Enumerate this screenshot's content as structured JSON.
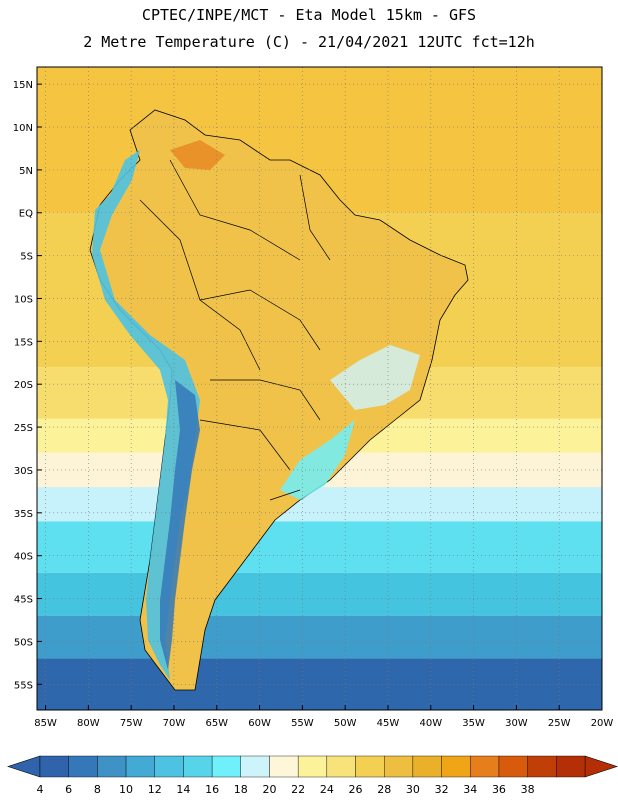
{
  "header": {
    "title_line1": "CPTEC/INPE/MCT -  Eta Model 15km - GFS",
    "title_line2": "2 Metre Temperature (C) - 21/04/2021 12UTC fct=12h"
  },
  "map": {
    "lon_range": [
      -86,
      -20
    ],
    "lat_range": [
      -58,
      17
    ],
    "lat_ticks": [
      {
        "value": 15,
        "label": "15N"
      },
      {
        "value": 10,
        "label": "10N"
      },
      {
        "value": 5,
        "label": "5N"
      },
      {
        "value": 0,
        "label": "EQ"
      },
      {
        "value": -5,
        "label": "5S"
      },
      {
        "value": -10,
        "label": "10S"
      },
      {
        "value": -15,
        "label": "15S"
      },
      {
        "value": -20,
        "label": "20S"
      },
      {
        "value": -25,
        "label": "25S"
      },
      {
        "value": -30,
        "label": "30S"
      },
      {
        "value": -35,
        "label": "35S"
      },
      {
        "value": -40,
        "label": "40S"
      },
      {
        "value": -45,
        "label": "45S"
      },
      {
        "value": -50,
        "label": "50S"
      },
      {
        "value": -55,
        "label": "55S"
      }
    ],
    "lon_ticks": [
      {
        "value": -85,
        "label": "85W"
      },
      {
        "value": -80,
        "label": "80W"
      },
      {
        "value": -75,
        "label": "75W"
      },
      {
        "value": -70,
        "label": "70W"
      },
      {
        "value": -65,
        "label": "65W"
      },
      {
        "value": -60,
        "label": "60W"
      },
      {
        "value": -55,
        "label": "55W"
      },
      {
        "value": -50,
        "label": "50W"
      },
      {
        "value": -45,
        "label": "45W"
      },
      {
        "value": -40,
        "label": "40W"
      },
      {
        "value": -35,
        "label": "35W"
      },
      {
        "value": -30,
        "label": "30W"
      },
      {
        "value": -25,
        "label": "25W"
      },
      {
        "value": -20,
        "label": "20W"
      }
    ],
    "gridlines": "dotted, every 5 degrees",
    "field_bands": [
      {
        "lat_from": 17,
        "lat_to": 0,
        "color": "#f5c542"
      },
      {
        "lat_from": 0,
        "lat_to": -18,
        "color": "#f3cf52"
      },
      {
        "lat_from": -18,
        "lat_to": -24,
        "color": "#f7dc6e"
      },
      {
        "lat_from": -24,
        "lat_to": -28,
        "color": "#fbf29a"
      },
      {
        "lat_from": -28,
        "lat_to": -32,
        "color": "#fdf4d8"
      },
      {
        "lat_from": -32,
        "lat_to": -36,
        "color": "#c8f2fb"
      },
      {
        "lat_from": -36,
        "lat_to": -42,
        "color": "#5fe0f0"
      },
      {
        "lat_from": -42,
        "lat_to": -47,
        "color": "#45c4e0"
      },
      {
        "lat_from": -47,
        "lat_to": -52,
        "color": "#3f9dcc"
      },
      {
        "lat_from": -52,
        "lat_to": -58,
        "color": "#2f67ad"
      }
    ],
    "land_color": "#f0c24a",
    "andes_colors": [
      "#5fe0f0",
      "#3f9dcc",
      "#2f67ad"
    ]
  },
  "colorbar": {
    "values": [
      "4",
      "6",
      "8",
      "10",
      "12",
      "14",
      "16",
      "18",
      "20",
      "22",
      "24",
      "26",
      "28",
      "30",
      "32",
      "34",
      "36",
      "38"
    ],
    "colors": [
      "#2f63ab",
      "#3478b9",
      "#3f92c6",
      "#43a9d5",
      "#4ec2e2",
      "#57d4ea",
      "#6ff0fa",
      "#cef4fb",
      "#fdf6d8",
      "#fbf29a",
      "#f7e37a",
      "#f3cf52",
      "#eebe40",
      "#eab02a",
      "#f0a418",
      "#e67e1c",
      "#d85a0c",
      "#c03f08",
      "#b52f06"
    ],
    "below_color": "#2f63ab",
    "above_color": "#b52f06"
  }
}
